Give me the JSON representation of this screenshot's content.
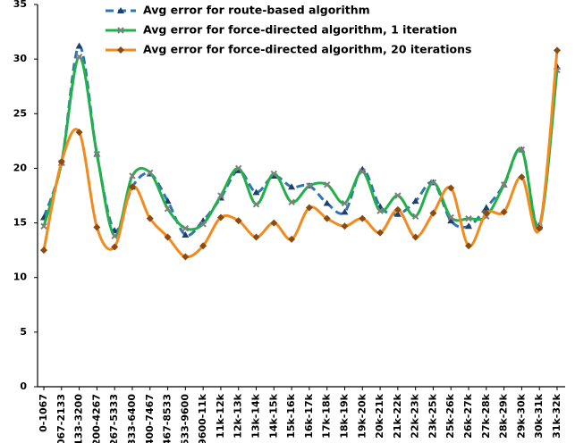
{
  "chart_data": {
    "type": "line",
    "categories": [
      "0-1067",
      "067-2133",
      "133-3200",
      "200-4267",
      "267-5333",
      "333-6400",
      "400-7467",
      "467-8533",
      "533-9600",
      "9600-11k",
      "11k-12k",
      "12k-13k",
      "13k-14k",
      "14k-15k",
      "15k-16k",
      "16k-17k",
      "17k-18k",
      "18k-19k",
      "19k-20k",
      "20k-21k",
      "21k-22k",
      "22k-23k",
      "23k-25k",
      "25k-26k",
      "26k-27k",
      "27k-28k",
      "28k-29k",
      "29k-30k",
      "30k-31k",
      "31k-32k"
    ],
    "series": [
      {
        "name": "Avg error for route-based algorithm",
        "color": "#2e75b6",
        "marker_color": "#1f3f6e",
        "marker": "triangle",
        "dashed": true,
        "values": [
          15.5,
          20.5,
          31.2,
          21.3,
          14.3,
          18.3,
          19.5,
          17,
          13.9,
          15.2,
          17.3,
          19.8,
          17.8,
          19.3,
          18.3,
          18.4,
          16.8,
          16,
          19.9,
          16.5,
          15.8,
          17,
          18.7,
          15.2,
          14.7,
          16.4,
          18.5,
          21.7,
          14.8,
          29.3
        ]
      },
      {
        "name": "Avg error for force-directed algorithm, 1 iteration",
        "color": "#22b04a",
        "marker_color": "#7f7f7f",
        "marker": "cross",
        "dashed": false,
        "values": [
          14.7,
          20.5,
          30.2,
          21.3,
          13.8,
          19.3,
          19.6,
          16.3,
          14.5,
          14.9,
          17.5,
          20,
          16.7,
          19.5,
          16.9,
          18.4,
          18.5,
          16.8,
          19.7,
          16.1,
          17.5,
          15.6,
          18.7,
          15.5,
          15.4,
          15.6,
          18.5,
          21.7,
          14.6,
          29
        ]
      },
      {
        "name": "Avg error for force-directed algorithm, 20 iterations",
        "color": "#f28a1e",
        "marker_color": "#8b4a12",
        "marker": "diamond",
        "dashed": false,
        "values": [
          12.5,
          20.6,
          23.3,
          14.6,
          12.8,
          18.3,
          15.4,
          13.7,
          11.9,
          12.9,
          15.5,
          15.2,
          13.7,
          15,
          13.5,
          16.4,
          15.4,
          14.7,
          15.4,
          14.1,
          16.2,
          13.7,
          15.9,
          18.2,
          12.9,
          15.9,
          16,
          19.2,
          14.5,
          30.8
        ]
      }
    ],
    "ylim": [
      0,
      35
    ],
    "yticks": [
      0,
      5,
      10,
      15,
      20,
      25,
      30,
      35
    ]
  }
}
